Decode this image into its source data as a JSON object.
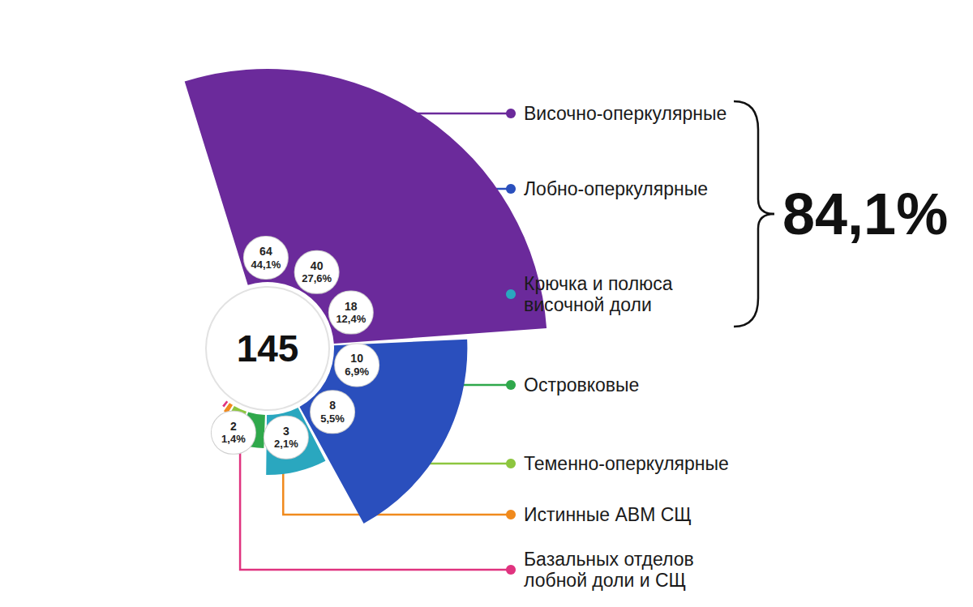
{
  "chart_data": {
    "type": "rose",
    "total": 145,
    "categories": [
      "Височно-оперкулярные",
      "Лобно-оперкулярные",
      "Крючка и полюса\nвисочной доли",
      "Островковые",
      "Теменно-оперкулярные",
      "Истинные АВМ СЩ",
      "Базальных отделов\nлобной доли и СЩ"
    ],
    "values": [
      64,
      40,
      18,
      10,
      8,
      3,
      2
    ],
    "percent_labels": [
      "44,1%",
      "27,6%",
      "12,4%",
      "6,9%",
      "5,5%",
      "2,1%",
      "1,4%"
    ],
    "colors": [
      "#6b2a9b",
      "#2a4fbd",
      "#2aa7bf",
      "#2fa84b",
      "#8dc63f",
      "#f08a1d",
      "#e0337f"
    ],
    "data_labels": true,
    "bracket": {
      "categories": [
        "Височно-оперкулярные",
        "Лобно-оперкулярные",
        "Крючка и полюса\nвисочной доли"
      ],
      "label": "84,1%"
    }
  }
}
